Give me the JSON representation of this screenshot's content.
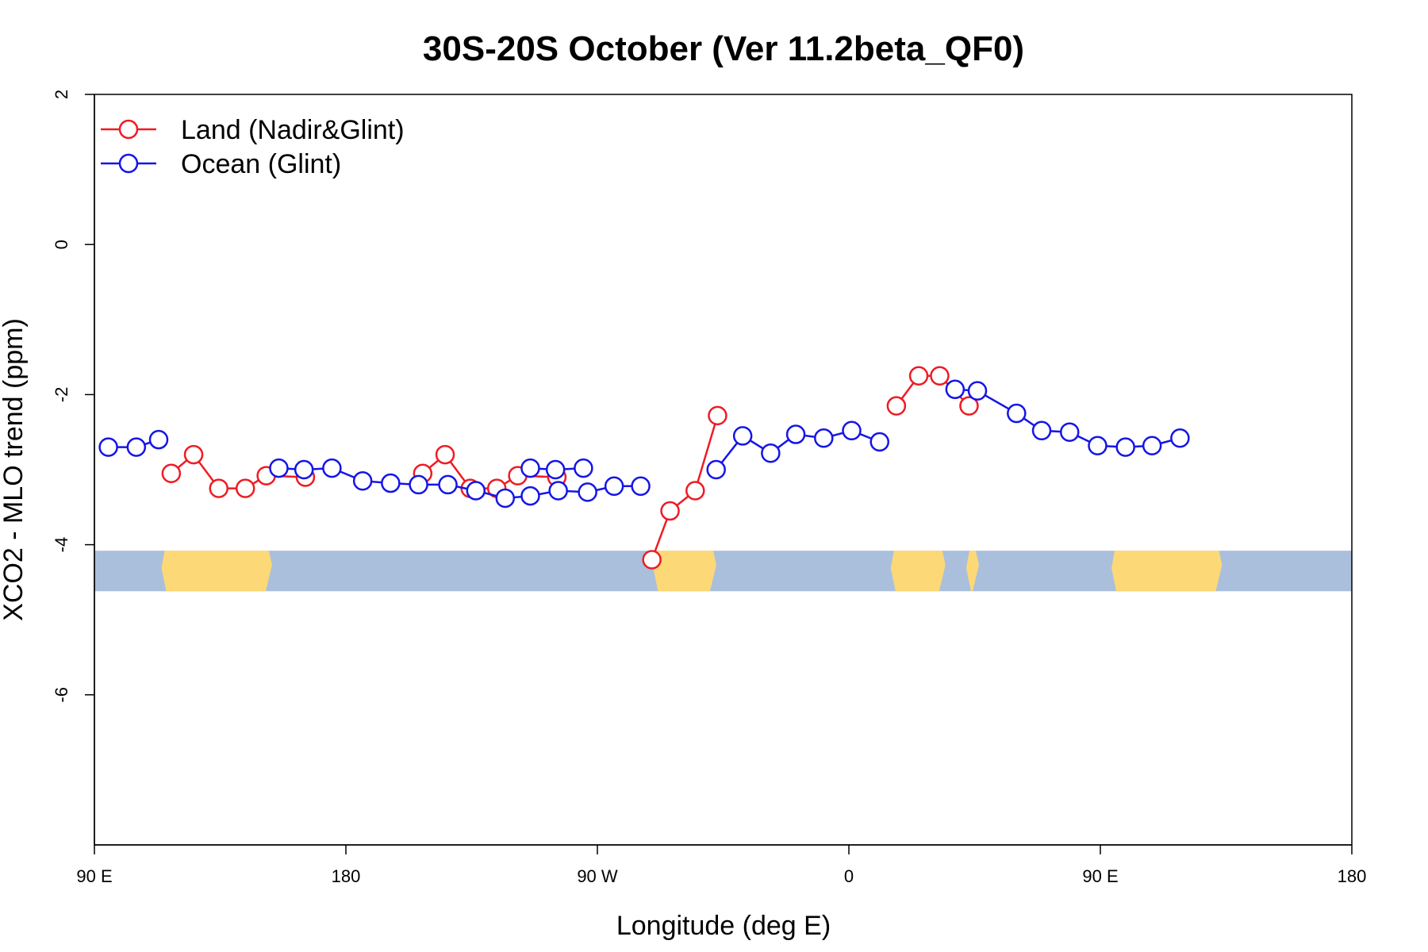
{
  "chart_data": {
    "type": "line",
    "title": "30S-20S October (Ver 11.2beta_QF0)",
    "xlabel": "Longitude (deg E)",
    "ylabel": "XCO2 - MLO trend (ppm)",
    "xlim": [
      90,
      540
    ],
    "ylim": [
      -8,
      2
    ],
    "x_ticks": [
      {
        "value": 90,
        "label": "90 E"
      },
      {
        "value": 180,
        "label": "180"
      },
      {
        "value": 270,
        "label": "90 W"
      },
      {
        "value": 360,
        "label": "0"
      },
      {
        "value": 450,
        "label": "90 E"
      },
      {
        "value": 540,
        "label": "180"
      }
    ],
    "y_ticks": [
      {
        "value": 2,
        "label": "2"
      },
      {
        "value": 0,
        "label": "0"
      },
      {
        "value": -2,
        "label": "-2"
      },
      {
        "value": -4,
        "label": "-4"
      },
      {
        "value": -6,
        "label": "-6"
      }
    ],
    "grid": false,
    "legend_position": "top-left",
    "series": [
      {
        "name": "Land (Nadir&Glint)",
        "color": "#ee1c24",
        "segments": [
          [
            [
              117.5,
              -3.05
            ],
            [
              125.5,
              -2.8
            ],
            [
              134.5,
              -3.25
            ],
            [
              144.0,
              -3.25
            ],
            [
              151.5,
              -3.08
            ],
            [
              165.5,
              -3.1
            ]
          ],
          [
            [
              289.5,
              -4.2
            ],
            [
              296.0,
              -3.55
            ],
            [
              305.0,
              -3.28
            ],
            [
              313.0,
              -2.28
            ]
          ],
          [
            [
              377.0,
              -2.15
            ],
            [
              385.0,
              -1.75
            ],
            [
              392.5,
              -1.75
            ],
            [
              403.0,
              -2.15
            ]
          ],
          [
            [
              207.5,
              -3.05
            ],
            [
              215.5,
              -2.8
            ],
            [
              224.5,
              -3.25
            ],
            [
              234.0,
              -3.25
            ],
            [
              241.5,
              -3.08
            ],
            [
              255.5,
              -3.1
            ]
          ]
        ]
      },
      {
        "name": "Ocean (Glint)",
        "color": "#1515e6",
        "segments": [
          [
            [
              95.0,
              -2.7
            ],
            [
              105.0,
              -2.7
            ],
            [
              113.0,
              -2.6
            ]
          ],
          [
            [
              156.0,
              -2.98
            ],
            [
              165.0,
              -3.0
            ],
            [
              175.0,
              -2.98
            ],
            [
              186.0,
              -3.15
            ],
            [
              196.0,
              -3.18
            ],
            [
              206.0,
              -3.2
            ],
            [
              216.5,
              -3.2
            ],
            [
              226.5,
              -3.28
            ],
            [
              237.0,
              -3.38
            ],
            [
              246.0,
              -3.35
            ],
            [
              256.0,
              -3.28
            ],
            [
              266.5,
              -3.3
            ],
            [
              276.0,
              -3.22
            ],
            [
              285.5,
              -3.22
            ]
          ],
          [
            [
              312.5,
              -3.0
            ],
            [
              322.0,
              -2.55
            ],
            [
              332.0,
              -2.78
            ],
            [
              341.0,
              -2.53
            ],
            [
              351.0,
              -2.58
            ],
            [
              361.0,
              -2.48
            ],
            [
              371.0,
              -2.63
            ]
          ],
          [
            [
              398.0,
              -1.93
            ],
            [
              406.0,
              -1.95
            ],
            [
              420.0,
              -2.25
            ],
            [
              429.0,
              -2.48
            ],
            [
              439.0,
              -2.5
            ],
            [
              449.0,
              -2.68
            ],
            [
              459.0,
              -2.7
            ],
            [
              468.5,
              -2.68
            ],
            [
              478.5,
              -2.58
            ]
          ],
          [
            [
              246.0,
              -2.98
            ],
            [
              255.0,
              -3.0
            ],
            [
              265.0,
              -2.98
            ]
          ]
        ]
      }
    ],
    "map_band": {
      "ylim": [
        -4.62,
        -4.08
      ],
      "ocean_color": "#a9bfdc",
      "land_color": "#fdd877",
      "land_ranges": [
        [
          114,
          153
        ],
        [
          290,
          312
        ],
        [
          375,
          394
        ],
        [
          402,
          406
        ],
        [
          454,
          493
        ]
      ]
    }
  }
}
